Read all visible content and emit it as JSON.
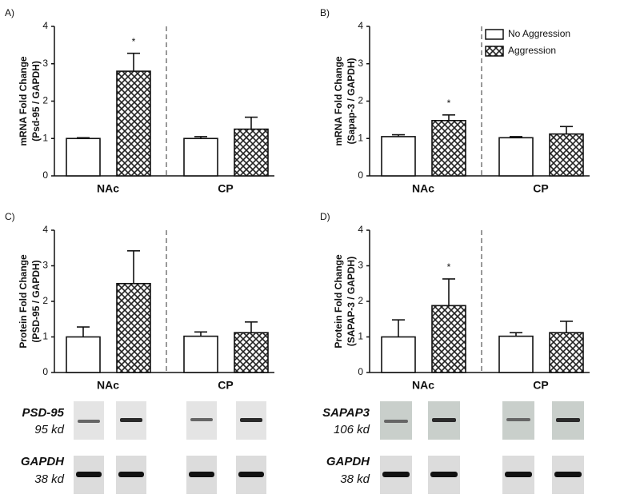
{
  "chart_data": [
    {
      "type": "bar",
      "panel_label": "A)",
      "ylabel": [
        "mRNA Fold Change",
        "(Psd-95 / GAPDH)"
      ],
      "categories": [
        "NAc",
        "CP"
      ],
      "ylim": [
        0,
        4
      ],
      "yticks": [
        0,
        1,
        2,
        3,
        4
      ],
      "series": [
        {
          "color": "#ffffff",
          "values": [
            1.0,
            1.0
          ],
          "errors": [
            0.02,
            0.05
          ]
        },
        {
          "color": "#ffffff",
          "pattern": "crosshatch",
          "values": [
            2.8,
            1.25
          ],
          "errors": [
            0.48,
            0.32
          ],
          "markers": [
            "*",
            null
          ]
        }
      ]
    },
    {
      "type": "bar",
      "panel_label": "B)",
      "ylabel": [
        "mRNA Fold Change",
        "(Sapap-3 / GAPDH)"
      ],
      "categories": [
        "NAc",
        "CP"
      ],
      "ylim": [
        0,
        4
      ],
      "yticks": [
        0,
        1,
        2,
        3,
        4
      ],
      "legend": "upper right",
      "series": [
        {
          "name": "No Aggression",
          "color": "#ffffff",
          "values": [
            1.05,
            1.02
          ],
          "errors": [
            0.05,
            0.03
          ]
        },
        {
          "name": "Aggression",
          "color": "#ffffff",
          "pattern": "crosshatch",
          "values": [
            1.48,
            1.12
          ],
          "errors": [
            0.15,
            0.2
          ],
          "markers": [
            "*",
            null
          ]
        }
      ]
    },
    {
      "type": "bar",
      "panel_label": "C)",
      "ylabel": [
        "Protein Fold Change",
        "(PSD-95 / GAPDH)"
      ],
      "categories": [
        "NAc",
        "CP"
      ],
      "ylim": [
        0,
        4
      ],
      "yticks": [
        0,
        1,
        2,
        3,
        4
      ],
      "series": [
        {
          "color": "#ffffff",
          "values": [
            1.0,
            1.02
          ],
          "errors": [
            0.28,
            0.12
          ]
        },
        {
          "color": "#ffffff",
          "pattern": "crosshatch",
          "values": [
            2.5,
            1.12
          ],
          "errors": [
            0.92,
            0.3
          ]
        }
      ]
    },
    {
      "type": "bar",
      "panel_label": "D)",
      "ylabel": [
        "Protein Fold Change",
        "(SAPAP-3 / GAPDH)"
      ],
      "categories": [
        "NAc",
        "CP"
      ],
      "ylim": [
        0,
        4
      ],
      "yticks": [
        0,
        1,
        2,
        3,
        4
      ],
      "series": [
        {
          "color": "#ffffff",
          "values": [
            1.0,
            1.02
          ],
          "errors": [
            0.48,
            0.1
          ]
        },
        {
          "color": "#ffffff",
          "pattern": "crosshatch",
          "values": [
            1.88,
            1.12
          ],
          "errors": [
            0.75,
            0.32
          ],
          "markers": [
            "*",
            null
          ]
        }
      ]
    }
  ],
  "blots": [
    {
      "target": "PSD-95",
      "target_size": "95 kd",
      "control": "GAPDH",
      "control_size": "38 kd"
    },
    {
      "target": "SAPAP3",
      "target_size": "106 kd",
      "control": "GAPDH",
      "control_size": "38 kd"
    }
  ]
}
